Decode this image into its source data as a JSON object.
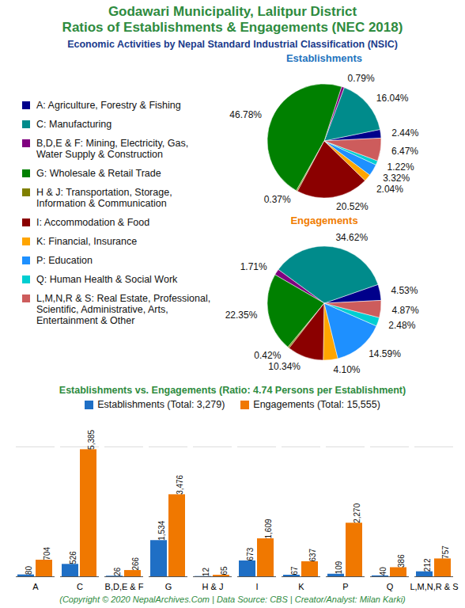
{
  "title": "Godawari Municipality, Lalitpur District\nRatios of Establishments & Engagements (NEC 2018)",
  "subtitle": "Economic Activities by Nepal Standard Industrial Classification (NSIC)",
  "caption": "(Copyright © 2020 NepalArchives.Com | Data Source: CBS | Creator/Analyst: Milan Karki)",
  "chart_data": [
    {
      "type": "pie",
      "title": "Establishments",
      "categories": [
        "A: Agriculture, Forestry & Fishing",
        "C: Manufacturing",
        "B,D,E & F: Mining, Electricity, Gas, Water Supply & Construction",
        "G: Wholesale & Retail Trade",
        "H & J: Transportation, Storage, Information & Communication",
        "I: Accommodation & Food",
        "K: Financial, Insurance",
        "P: Education",
        "Q: Human Health & Social Work",
        "L,M,N,R & S: Real Estate, Professional, Scientific, Administrative, Arts, Entertainment & Other"
      ],
      "values": [
        2.44,
        16.04,
        0.79,
        46.78,
        0.37,
        20.52,
        2.04,
        3.32,
        1.22,
        6.47
      ],
      "value_labels": [
        "2.44%",
        "16.04%",
        "0.79%",
        "46.78%",
        "0.37%",
        "20.52%",
        "2.04%",
        "3.32%",
        "1.22%",
        "6.47%"
      ],
      "colors": [
        "#00008b",
        "#008b8b",
        "#800080",
        "#008000",
        "#808000",
        "#8b0000",
        "#ffa500",
        "#1e90ff",
        "#00ced1",
        "#cd5c5c"
      ],
      "data_labels": true,
      "legend": "left"
    },
    {
      "type": "pie",
      "title": "Engagements",
      "categories": [
        "A: Agriculture, Forestry & Fishing",
        "C: Manufacturing",
        "B,D,E & F: Mining, Electricity, Gas, Water Supply & Construction",
        "G: Wholesale & Retail Trade",
        "H & J: Transportation, Storage, Information & Communication",
        "I: Accommodation & Food",
        "K: Financial, Insurance",
        "P: Education",
        "Q: Human Health & Social Work",
        "L,M,N,R & S: Real Estate, Professional, Scientific, Administrative, Arts, Entertainment & Other"
      ],
      "values": [
        4.53,
        34.62,
        1.71,
        22.35,
        0.42,
        10.34,
        4.1,
        14.59,
        2.48,
        4.87
      ],
      "value_labels": [
        "4.53%",
        "34.62%",
        "1.71%",
        "22.35%",
        "0.42%",
        "10.34%",
        "4.10%",
        "14.59%",
        "2.48%",
        "4.87%"
      ],
      "colors": [
        "#00008b",
        "#008b8b",
        "#800080",
        "#008000",
        "#808000",
        "#8b0000",
        "#ffa500",
        "#1e90ff",
        "#00ced1",
        "#cd5c5c"
      ],
      "data_labels": true
    },
    {
      "type": "bar",
      "title": "Establishments vs. Engagements (Ratio: 4.74 Persons per Establishment)",
      "categories": [
        "A",
        "C",
        "B,D,E & F",
        "G",
        "H & J",
        "I",
        "K",
        "P",
        "Q",
        "L,M,N,R & S"
      ],
      "series": [
        {
          "name": "Establishments (Total: 3,279)",
          "color": "#1f6fc5",
          "values": [
            80,
            526,
            26,
            1534,
            12,
            673,
            67,
            109,
            40,
            212
          ],
          "value_labels": [
            "80",
            "526",
            "26",
            "1,534",
            "12",
            "673",
            "67",
            "109",
            "40",
            "212"
          ]
        },
        {
          "name": "Engagements (Total: 15,555)",
          "color": "#f07800",
          "values": [
            704,
            5385,
            266,
            3476,
            65,
            1609,
            637,
            2270,
            386,
            757
          ],
          "value_labels": [
            "704",
            "5,385",
            "266",
            "3,476",
            "65",
            "1,609",
            "637",
            "2,270",
            "386",
            "757"
          ]
        }
      ],
      "ylim": [
        0,
        5500
      ],
      "data_labels": true,
      "tick_labels": "x",
      "legend": "top"
    }
  ]
}
